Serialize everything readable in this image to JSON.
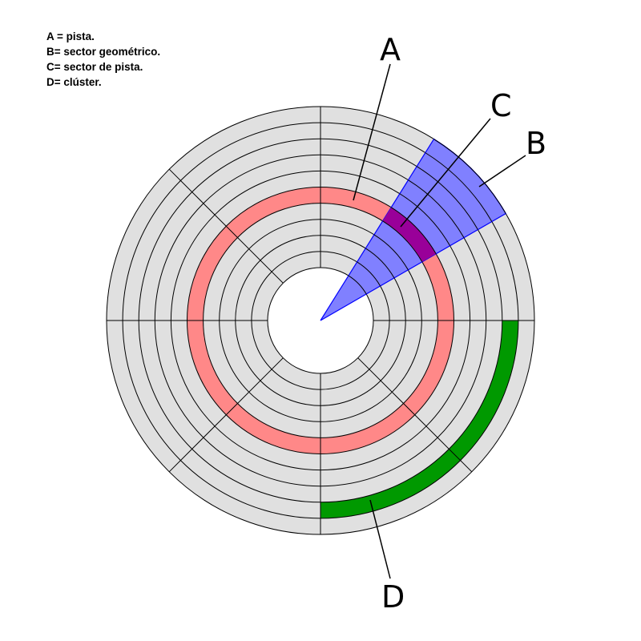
{
  "legend": [
    {
      "text": "A = pista."
    },
    {
      "text": "B= sector geométrico."
    },
    {
      "text": "C= sector de pista."
    },
    {
      "text": "D= clúster."
    }
  ],
  "callouts": {
    "A": "A",
    "B": "B",
    "C": "C",
    "D": "D"
  },
  "disk": {
    "track_count": 10,
    "sector_count": 8,
    "highlight_track_index": 4,
    "cluster_track_index": 8,
    "cluster_sectors": 2,
    "colors": {
      "platter": "#e0e0e0",
      "track_line": "#000000",
      "track_A": "#ff8888",
      "sector_B": "#8080ff",
      "sector_B_edge": "#0000ff",
      "track_sector_C": "#990099",
      "cluster_D": "#009900"
    }
  }
}
